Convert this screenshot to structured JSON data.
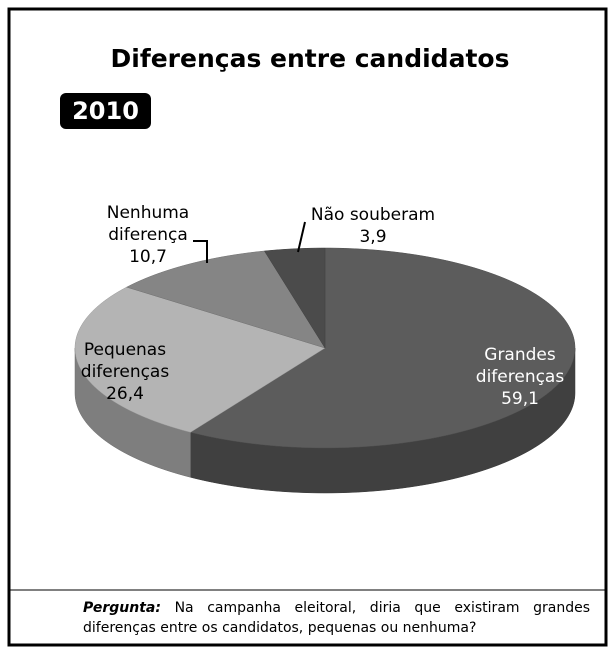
{
  "chart_data": {
    "type": "pie3d",
    "title": "Diferenças entre candidatos",
    "subtitle": "2010",
    "categories": [
      [
        "Grandes",
        "diferenças"
      ],
      [
        "Pequenas",
        "diferenças"
      ],
      [
        "Nenhuma",
        "diferença"
      ],
      [
        "Não souberam"
      ]
    ],
    "values": [
      59.1,
      26.4,
      10.7,
      3.9
    ],
    "value_labels": [
      "59,1",
      "26,4",
      "10,7",
      "3,9"
    ],
    "colors": [
      "#5c5c5c",
      "#b4b4b4",
      "#858585",
      "#4b4b4b"
    ],
    "label_colors": [
      "#ffffff",
      "#000000",
      "#000000",
      "#000000"
    ]
  },
  "note": {
    "label": "Pergunta:",
    "text": "Na campanha eleitoral, diria que existiram grandes diferenças entre os candidatos, pequenas ou nenhuma?"
  }
}
